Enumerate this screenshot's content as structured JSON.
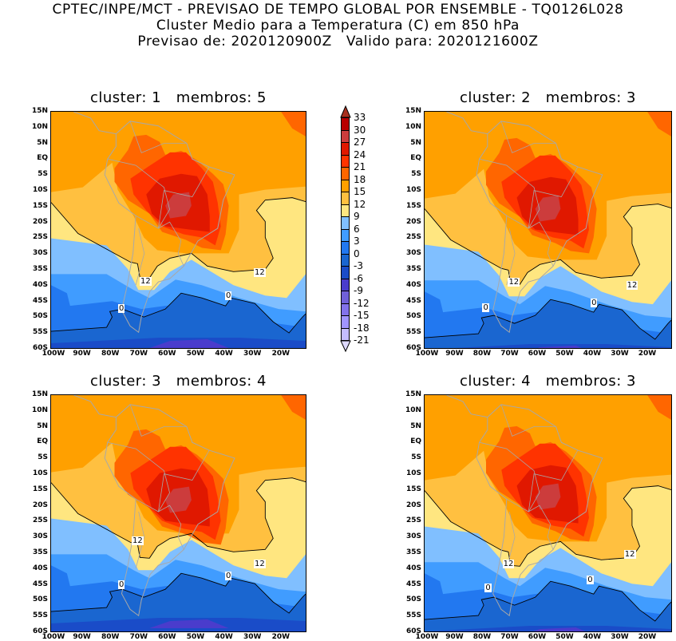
{
  "header": {
    "line1": "CPTEC/INPE/MCT - PREVISAO DE TEMPO GLOBAL POR ENSEMBLE - TQ0126L028",
    "line2": "Cluster Medio para a Temperatura (C) em 850 hPa",
    "line3": "Previsao de: 2020120900Z   Valido para: 2020121600Z"
  },
  "panels": [
    {
      "title": "cluster: 1   membros: 5",
      "contour_labels": [
        "12",
        "12",
        "0",
        "0"
      ]
    },
    {
      "title": "cluster: 2   membros: 3",
      "contour_labels": [
        "12",
        "12",
        "0",
        "0"
      ]
    },
    {
      "title": "cluster: 3   membros: 4",
      "contour_labels": [
        "12",
        "12",
        "0",
        "0"
      ]
    },
    {
      "title": "cluster: 4   membros: 3",
      "contour_labels": [
        "12",
        "12",
        "0",
        "0"
      ]
    }
  ],
  "axes": {
    "lat_labels": [
      "15N",
      "10N",
      "5N",
      "EQ",
      "5S",
      "10S",
      "15S",
      "20S",
      "25S",
      "30S",
      "35S",
      "40S",
      "45S",
      "50S",
      "55S",
      "60S"
    ],
    "lon_labels": [
      "100W",
      "90W",
      "80W",
      "70W",
      "60W",
      "50W",
      "40W",
      "30W",
      "20W"
    ]
  },
  "colorbar": {
    "labels": [
      "33",
      "30",
      "27",
      "24",
      "21",
      "18",
      "15",
      "12",
      "9",
      "6",
      "3",
      "0",
      "-3",
      "-6",
      "-9",
      "-12",
      "-15",
      "-18",
      "-21"
    ],
    "over_color": "#a8301e",
    "under_color": "#ddd8ff",
    "colors": [
      "#b80000",
      "#cc3c3c",
      "#e01800",
      "#ff3300",
      "#ff6600",
      "#ffa000",
      "#ffc040",
      "#ffe680",
      "#80bfff",
      "#409cff",
      "#2278f0",
      "#1a66d0",
      "#1a4cc8",
      "#4a3ccc",
      "#7060d8",
      "#8272ea",
      "#a094ff",
      "#c4bcff"
    ]
  }
}
